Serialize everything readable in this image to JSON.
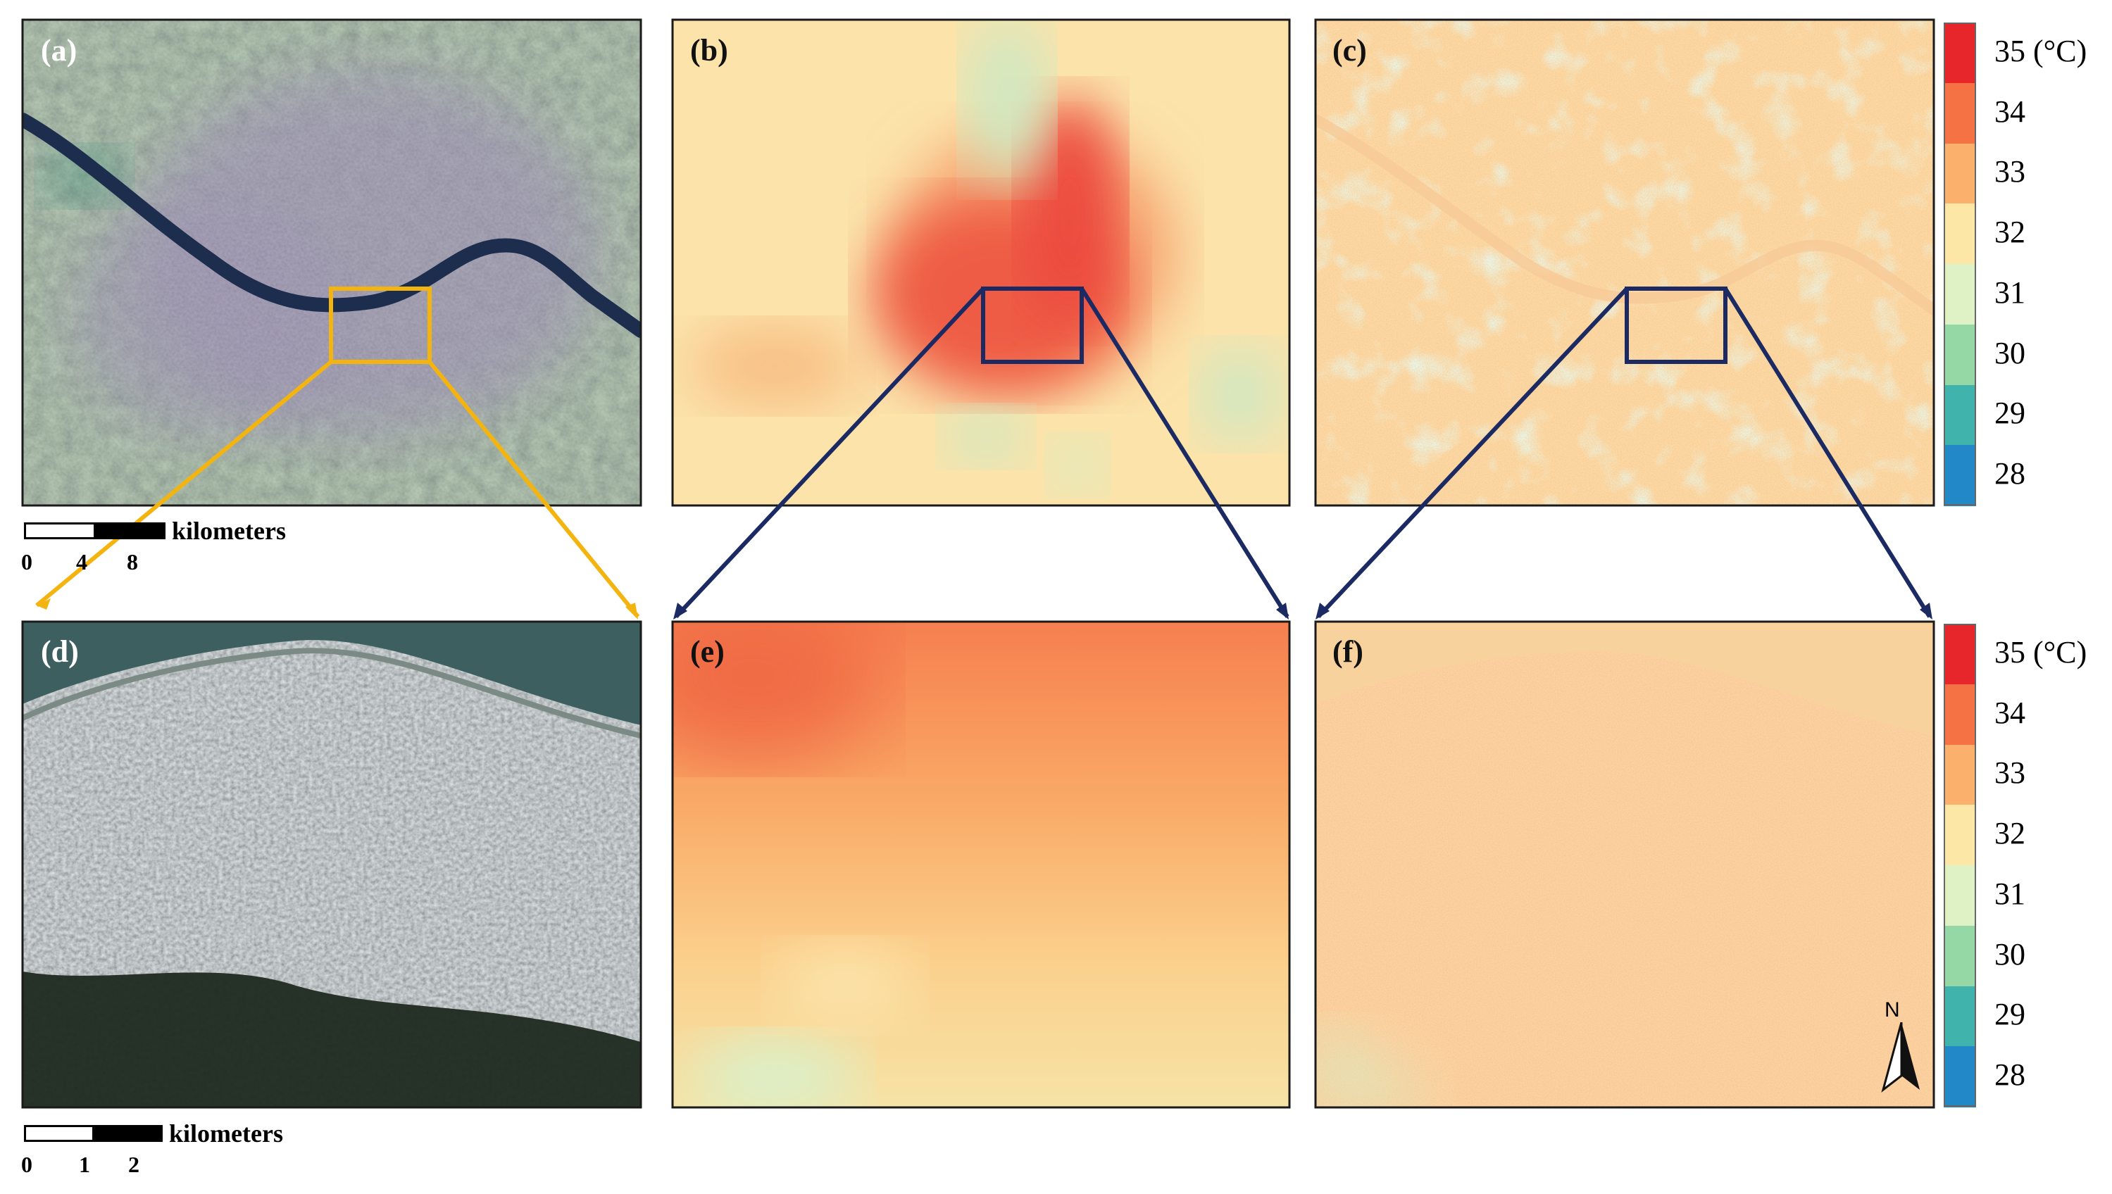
{
  "panels": {
    "a": {
      "label": "(a)"
    },
    "b": {
      "label": "(b)"
    },
    "c": {
      "label": "(c)"
    },
    "d": {
      "label": "(d)"
    },
    "e": {
      "label": "(e)"
    },
    "f": {
      "label": "(f)"
    }
  },
  "scalebar_top": {
    "unit": "kilometers",
    "ticks": [
      "0",
      "4",
      "8"
    ]
  },
  "scalebar_bottom": {
    "unit": "kilometers",
    "ticks": [
      "0",
      "1",
      "2"
    ]
  },
  "legend": {
    "entries": [
      {
        "label": "35 (°C)",
        "color": "#e6262a"
      },
      {
        "label": "34",
        "color": "#f57245"
      },
      {
        "label": "33",
        "color": "#fbb16c"
      },
      {
        "label": "32",
        "color": "#fde7a6"
      },
      {
        "label": "31",
        "color": "#dff2c6"
      },
      {
        "label": "30",
        "color": "#96d7a6"
      },
      {
        "label": "29",
        "color": "#3fb3ac"
      },
      {
        "label": "28",
        "color": "#2388c7"
      }
    ]
  },
  "north_arrow": {
    "letter": "N",
    "icon": "north-arrow-icon"
  },
  "colors": {
    "zoom_box_satellite": "#f3b40f",
    "zoom_box_lst": "#1b2a63"
  }
}
